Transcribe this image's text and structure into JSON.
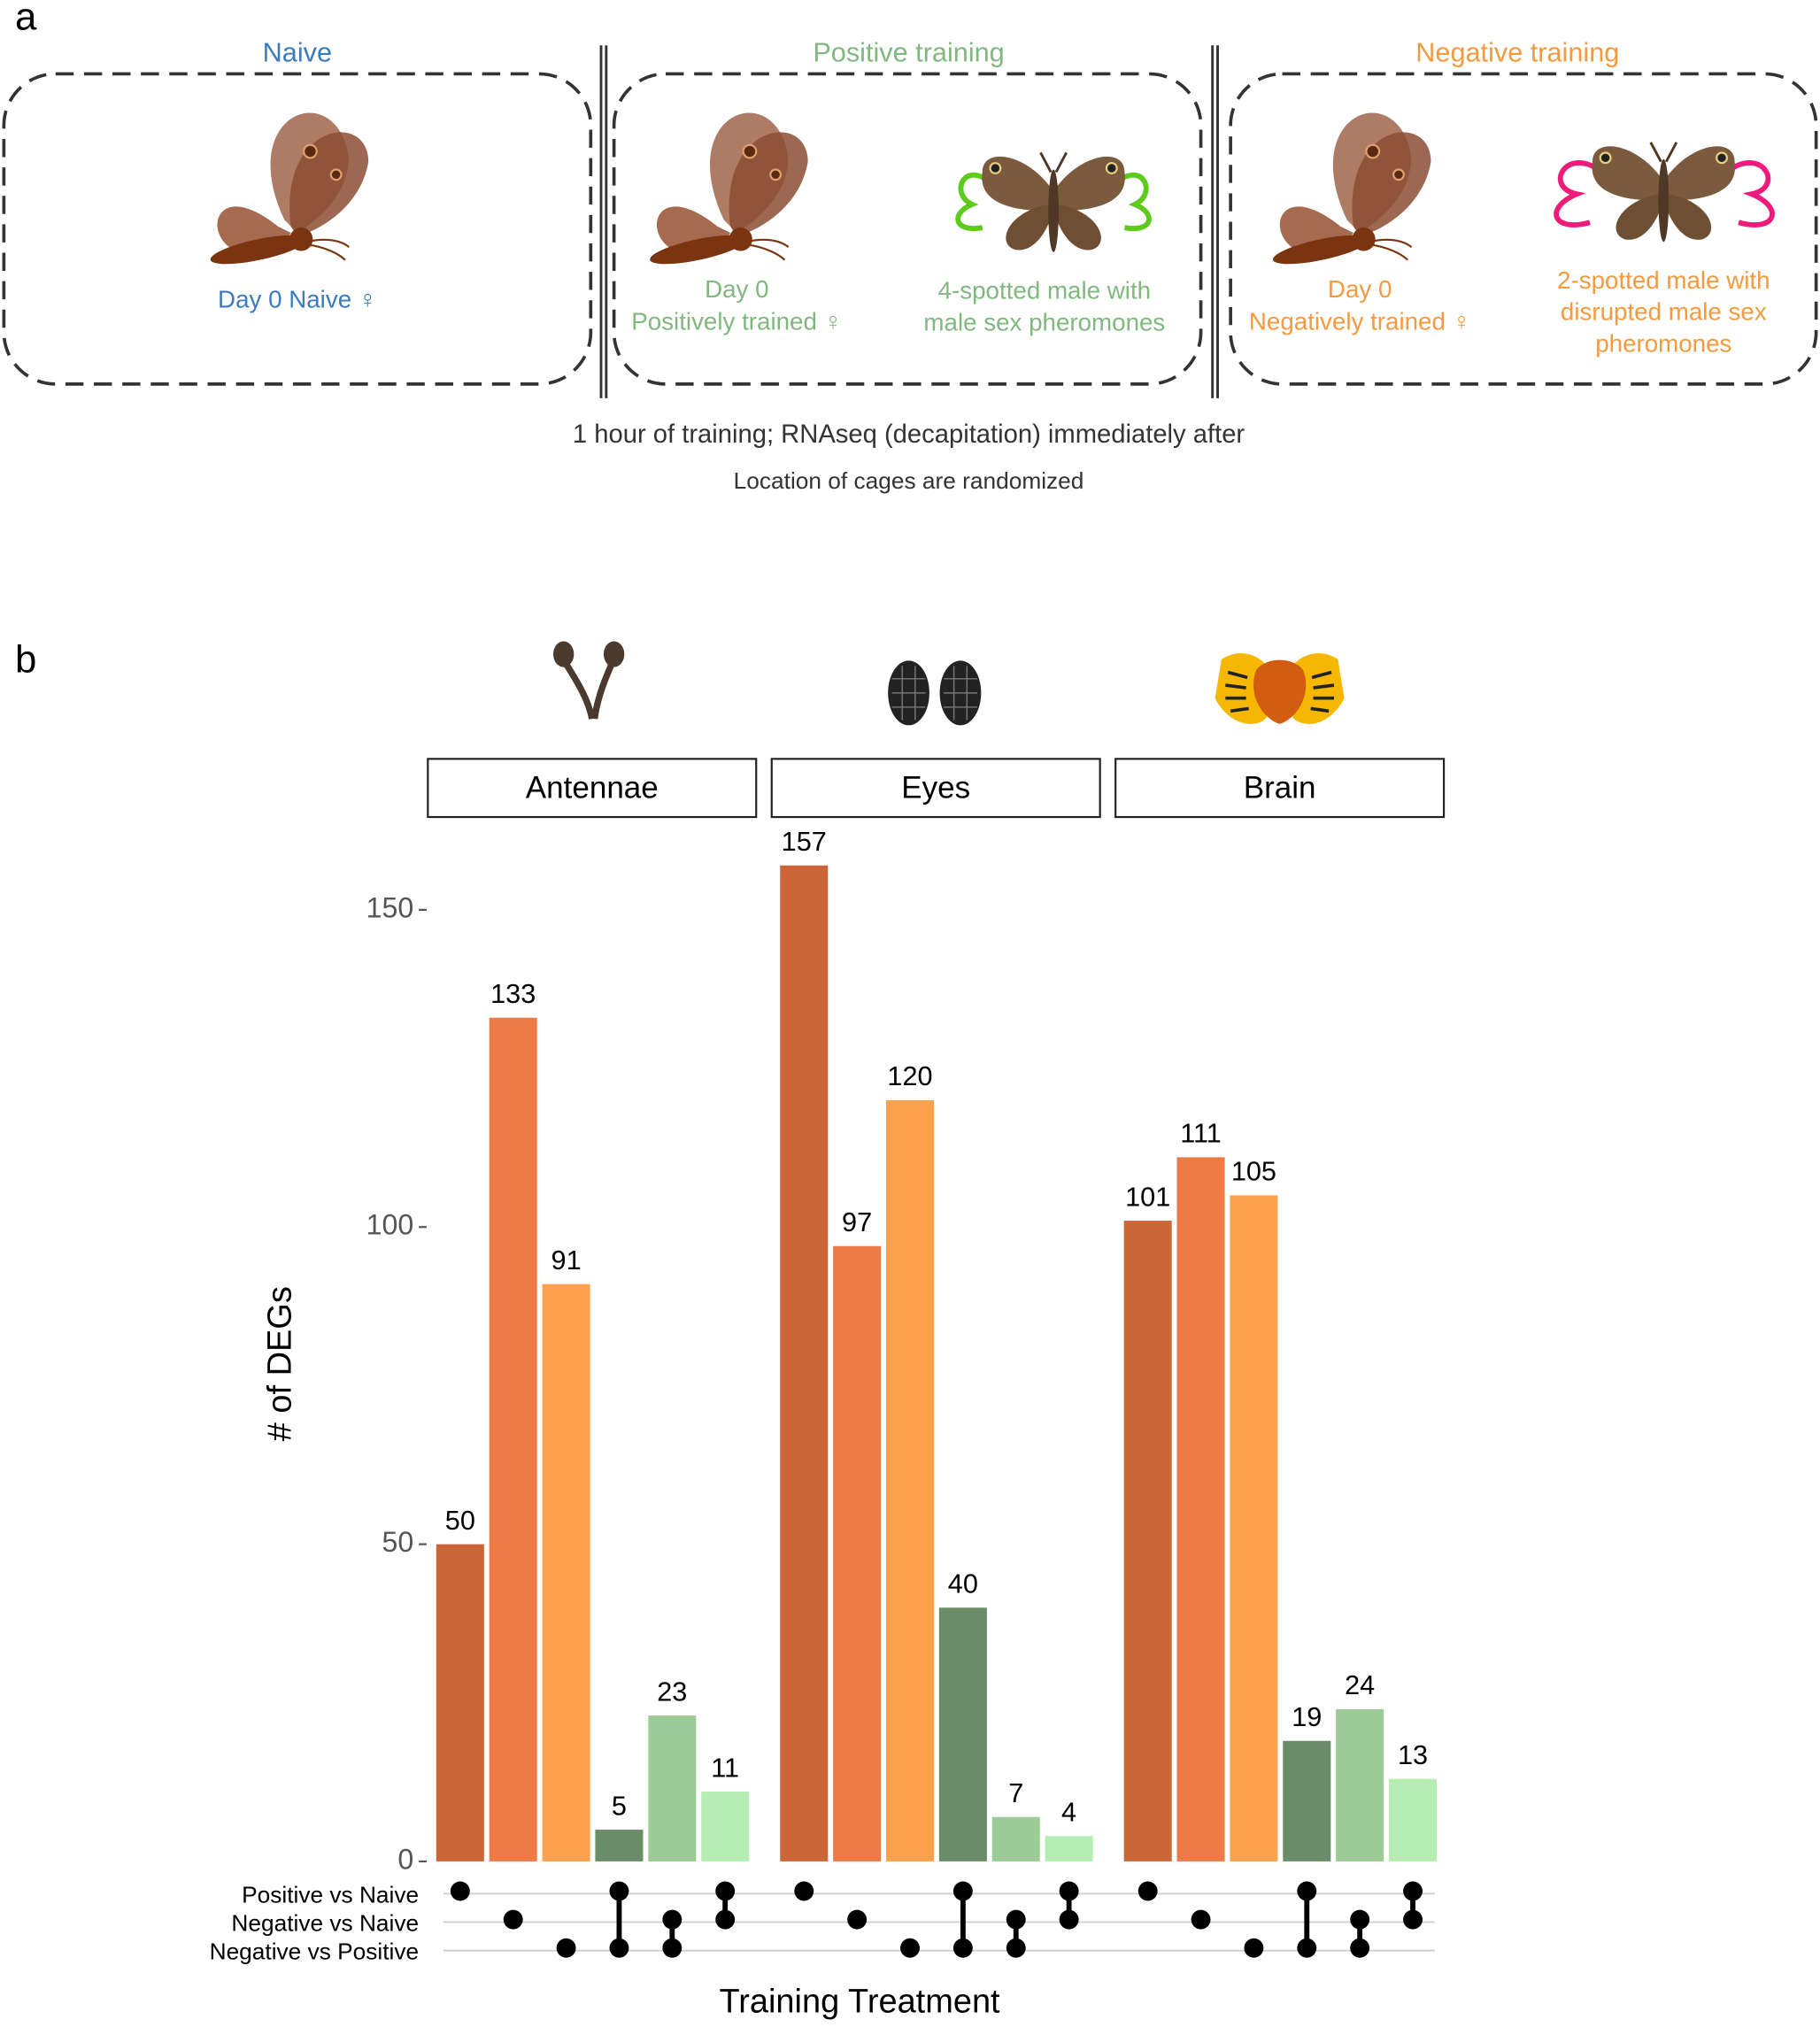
{
  "panel_a": {
    "label": "a",
    "groups": [
      {
        "title": "Naive",
        "female": [
          "Day 0 Naive ♀"
        ],
        "male": []
      },
      {
        "title": "Positive training",
        "female": [
          "Day 0",
          "Positively trained ♀"
        ],
        "male": [
          "4-spotted male with",
          "male sex pheromones"
        ]
      },
      {
        "title": "Negative training",
        "female": [
          "Day 0",
          "Negatively trained ♀"
        ],
        "male": [
          "2-spotted male with",
          "disrupted male sex",
          "pheromones"
        ]
      }
    ],
    "notes": [
      "1 hour of training; RNAseq (decapitation) immediately after",
      "Location of cages are randomized"
    ]
  },
  "chart_data": {
    "type": "upset_bar",
    "panel_label": "b",
    "ylabel": "# of DEGs",
    "xlabel": "Training Treatment",
    "ylim": [
      0,
      163
    ],
    "yticks": [
      0,
      50,
      100,
      150
    ],
    "sets": [
      "Positive vs Naive",
      "Negative vs Naive",
      "Negative vs Positive"
    ],
    "combinations": [
      [
        0
      ],
      [
        1
      ],
      [
        2
      ],
      [
        0,
        2
      ],
      [
        1,
        2
      ],
      [
        0,
        1
      ]
    ],
    "colors": [
      "#cc6638",
      "#ee7b45",
      "#fca24f",
      "#6a8c69",
      "#9ccb98",
      "#b5edb3"
    ],
    "facets": [
      {
        "name": "Antennae",
        "values": [
          50,
          133,
          91,
          5,
          23,
          11
        ]
      },
      {
        "name": "Eyes",
        "values": [
          157,
          97,
          120,
          40,
          7,
          4
        ]
      },
      {
        "name": "Brain",
        "values": [
          101,
          111,
          105,
          19,
          24,
          13
        ]
      }
    ]
  }
}
